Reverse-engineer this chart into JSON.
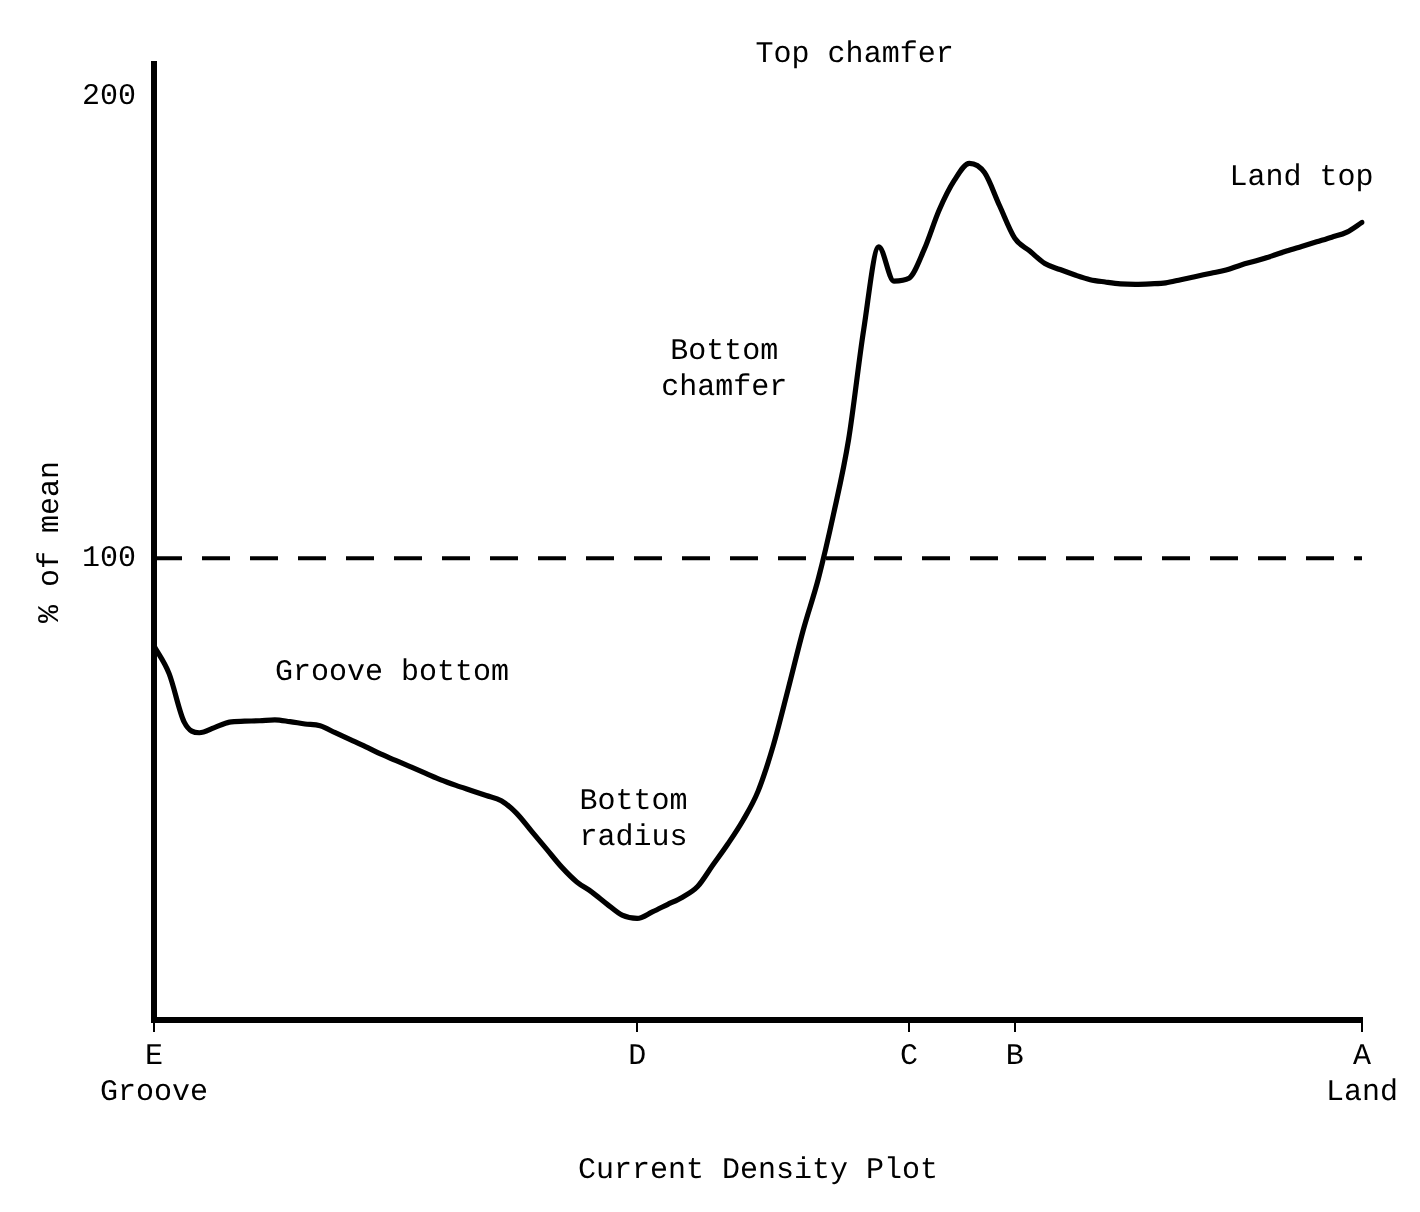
{
  "chart_data": {
    "type": "line",
    "xlabel": "Current Density Plot",
    "ylabel": "% of mean",
    "categories": [
      "E\nGroove",
      null,
      null,
      null,
      null,
      null,
      null,
      null,
      null,
      null,
      null,
      null,
      null,
      null,
      null,
      null,
      null,
      null,
      null,
      null,
      null,
      null,
      null,
      null,
      null,
      null,
      null,
      null,
      null,
      null,
      null,
      null,
      "D",
      null,
      null,
      null,
      null,
      null,
      null,
      null,
      null,
      null,
      null,
      null,
      null,
      null,
      null,
      null,
      null,
      null,
      "C",
      null,
      null,
      null,
      null,
      null,
      null,
      "B",
      null,
      null,
      null,
      null,
      null,
      null,
      null,
      null,
      null,
      null,
      null,
      null,
      null,
      null,
      null,
      null,
      null,
      null,
      null,
      null,
      null,
      null,
      "A\nLand"
    ],
    "series": [
      {
        "color": "#000000",
        "values": [
          81,
          75,
          64.5,
          62.2,
          63.3,
          64.5,
          64.7,
          64.8,
          65,
          64.6,
          64.1,
          63.7,
          62.2,
          60.7,
          59.2,
          57.6,
          56.2,
          54.8,
          53.4,
          52,
          50.8,
          49.7,
          48.6,
          47.5,
          44.8,
          40.9,
          37,
          33.1,
          29.9,
          27.7,
          25.1,
          22.7,
          22,
          23.4,
          25,
          26.6,
          28.9,
          33.5,
          38.1,
          43.2,
          49.5,
          59.3,
          71.7,
          84.5,
          95.6,
          109.5,
          125.7,
          149.5,
          167.4,
          160,
          160.6,
          166.8,
          175.4,
          181.8,
          185.5,
          183.5,
          176.3,
          169.3,
          166.5,
          163.8,
          162.5,
          161.3,
          160.3,
          159.8,
          159.4,
          159.3,
          159.4,
          159.6,
          160.3,
          161,
          161.7,
          162.4,
          163.5,
          164.4,
          165.4,
          166.5,
          167.5,
          168.5,
          169.5,
          170.6,
          172.7
        ]
      }
    ],
    "ylim": [
      0,
      207
    ],
    "yticks": [
      100,
      200
    ],
    "ref_lines": [
      {
        "axis": "y",
        "value": 100,
        "color": "#000000",
        "line_style": "dashed"
      }
    ],
    "annotations": [
      "Groove bottom",
      "Bottom radius",
      "Bottom chamfer",
      "Top chamfer",
      "Land top"
    ],
    "grid": false,
    "legend": false,
    "marker": "none",
    "line_style": "solid"
  }
}
